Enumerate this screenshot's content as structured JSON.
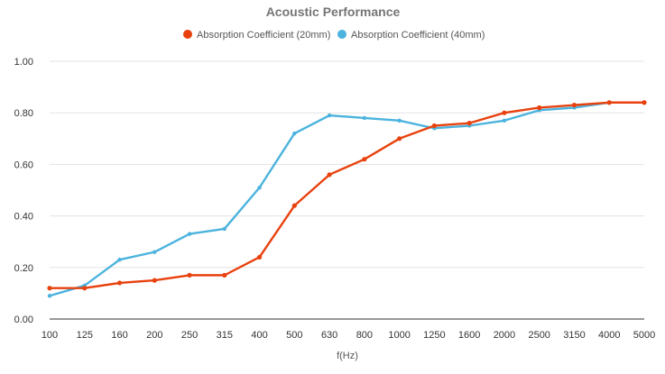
{
  "chart_data": {
    "type": "line",
    "title": "Acoustic Performance",
    "xlabel": "f(Hz)",
    "ylabel": "",
    "categories": [
      "100",
      "125",
      "160",
      "200",
      "250",
      "315",
      "400",
      "500",
      "630",
      "800",
      "1000",
      "1250",
      "1600",
      "2000",
      "2500",
      "3150",
      "4000",
      "5000"
    ],
    "ylim": [
      0,
      1
    ],
    "yticks": [
      "0.00",
      "0.20",
      "0.40",
      "0.60",
      "0.80",
      "1.00"
    ],
    "grid": true,
    "legend_position": "top",
    "series": [
      {
        "name": "Absorption Coefficient (20mm)",
        "color": "#e8410e",
        "values": [
          0.12,
          0.12,
          0.14,
          0.15,
          0.17,
          0.17,
          0.24,
          0.44,
          0.56,
          0.62,
          0.7,
          0.75,
          0.76,
          0.8,
          0.82,
          0.83,
          0.84,
          0.84
        ]
      },
      {
        "name": "Absorption Coefficient (40mm)",
        "color": "#4bb3dd",
        "values": [
          0.09,
          0.13,
          0.23,
          0.26,
          0.33,
          0.35,
          0.51,
          0.72,
          0.79,
          0.78,
          0.77,
          0.74,
          0.75,
          0.77,
          0.81,
          0.82,
          0.84,
          0.84
        ]
      }
    ]
  }
}
